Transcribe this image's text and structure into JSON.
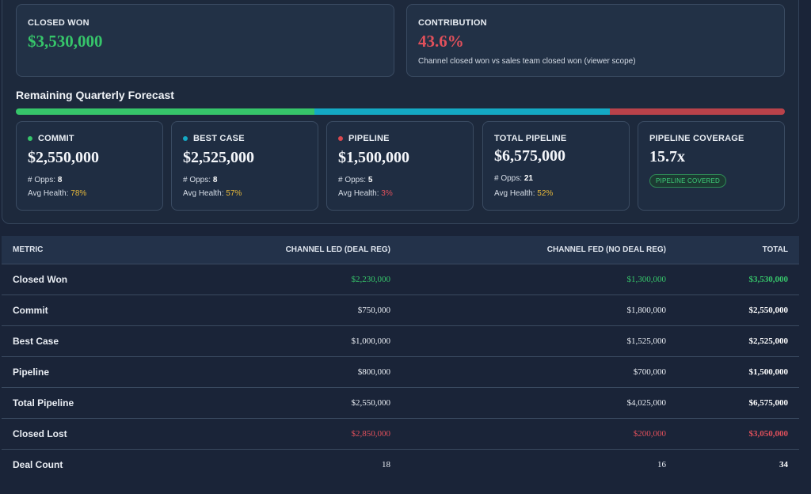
{
  "summary": {
    "closed_won": {
      "label": "CLOSED WON",
      "value": "$3,530,000",
      "color": "#36c56a"
    },
    "contribution": {
      "label": "CONTRIBUTION",
      "value": "43.6%",
      "color": "#e0505b",
      "subtitle": "Channel closed won vs sales team closed won (viewer scope)"
    }
  },
  "forecast": {
    "title": "Remaining Quarterly Forecast",
    "bar_segments": [
      {
        "name": "commit",
        "fraction": 0.388,
        "color": "#36c56a"
      },
      {
        "name": "best-case",
        "fraction": 0.384,
        "color": "#14a9c4"
      },
      {
        "name": "pipeline",
        "fraction": 0.228,
        "color": "#b9424a"
      }
    ],
    "cards": [
      {
        "label": "COMMIT",
        "dot": "#36c56a",
        "value": "$2,550,000",
        "opps_label": "# Opps:",
        "opps": "8",
        "health_label": "Avg Health:",
        "health": "78%",
        "health_color": "#e7b93a"
      },
      {
        "label": "BEST CASE",
        "dot": "#14a9c4",
        "value": "$2,525,000",
        "opps_label": "# Opps:",
        "opps": "8",
        "health_label": "Avg Health:",
        "health": "57%",
        "health_color": "#e7b93a"
      },
      {
        "label": "PIPELINE",
        "dot": "#d9484f",
        "value": "$1,500,000",
        "opps_label": "# Opps:",
        "opps": "5",
        "health_label": "Avg Health:",
        "health": "3%",
        "health_color": "#e0505b"
      },
      {
        "label": "TOTAL PIPELINE",
        "value": "$6,575,000",
        "opps_label": "# Opps:",
        "opps": "21",
        "health_label": "Avg Health:",
        "health": "52%",
        "health_color": "#e7b93a"
      },
      {
        "label": "PIPELINE COVERAGE",
        "value": "15.7x",
        "badge": "PIPELINE COVERED"
      }
    ]
  },
  "table": {
    "headers": [
      "METRIC",
      "CHANNEL LED (DEAL REG)",
      "CHANNEL FED (NO DEAL REG)",
      "TOTAL"
    ],
    "rows": [
      {
        "metric": "Closed Won",
        "led": "$2,230,000",
        "fed": "$1,300,000",
        "total": "$3,530,000",
        "tone": "green"
      },
      {
        "metric": "Commit",
        "led": "$750,000",
        "fed": "$1,800,000",
        "total": "$2,550,000",
        "tone": ""
      },
      {
        "metric": "Best Case",
        "led": "$1,000,000",
        "fed": "$1,525,000",
        "total": "$2,525,000",
        "tone": ""
      },
      {
        "metric": "Pipeline",
        "led": "$800,000",
        "fed": "$700,000",
        "total": "$1,500,000",
        "tone": ""
      },
      {
        "metric": "Total Pipeline",
        "led": "$2,550,000",
        "fed": "$4,025,000",
        "total": "$6,575,000",
        "tone": ""
      },
      {
        "metric": "Closed Lost",
        "led": "$2,850,000",
        "fed": "$200,000",
        "total": "$3,050,000",
        "tone": "red"
      },
      {
        "metric": "Deal Count",
        "led": "18",
        "fed": "16",
        "total": "34",
        "tone": ""
      }
    ]
  }
}
